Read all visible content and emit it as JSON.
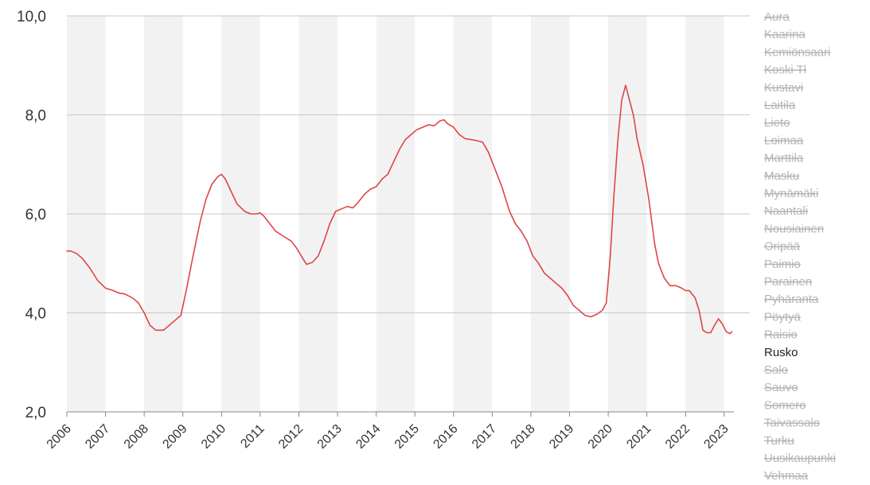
{
  "chart_data": {
    "type": "line",
    "title": "",
    "xlabel": "",
    "ylabel": "",
    "ylim": [
      2.0,
      10.0
    ],
    "xlim": [
      2006.0,
      2023.25
    ],
    "yticks": [
      "2,0",
      "4,0",
      "6,0",
      "8,0",
      "10,0"
    ],
    "ytick_values": [
      2,
      4,
      6,
      8,
      10
    ],
    "xticks": [
      "2006",
      "2007",
      "2008",
      "2009",
      "2010",
      "2011",
      "2012",
      "2013",
      "2014",
      "2015",
      "2016",
      "2017",
      "2018",
      "2019",
      "2020",
      "2021",
      "2022",
      "2023"
    ],
    "grid": "horizontal",
    "alternating_year_bands": true,
    "colors": {
      "line": "#e04545",
      "band": "#f2f2f2",
      "grid": "#c8c8c8",
      "axis": "#888888",
      "legend_off": "#b5b5b5",
      "legend_on": "#222222"
    },
    "legend_position": "right",
    "series": [
      {
        "name": "Rusko",
        "x": [
          2006.0,
          2006.1,
          2006.25,
          2006.4,
          2006.6,
          2006.8,
          2007.0,
          2007.2,
          2007.35,
          2007.5,
          2007.7,
          2007.85,
          2008.0,
          2008.15,
          2008.3,
          2008.5,
          2008.65,
          2008.8,
          2008.95,
          2009.1,
          2009.25,
          2009.45,
          2009.6,
          2009.75,
          2009.9,
          2010.0,
          2010.1,
          2010.25,
          2010.4,
          2010.6,
          2010.75,
          2010.9,
          2011.0,
          2011.1,
          2011.25,
          2011.4,
          2011.6,
          2011.8,
          2011.95,
          2012.1,
          2012.2,
          2012.35,
          2012.5,
          2012.65,
          2012.8,
          2012.95,
          2013.1,
          2013.25,
          2013.4,
          2013.55,
          2013.7,
          2013.85,
          2014.0,
          2014.15,
          2014.3,
          2014.45,
          2014.6,
          2014.75,
          2014.9,
          2015.05,
          2015.2,
          2015.35,
          2015.5,
          2015.65,
          2015.75,
          2015.85,
          2016.0,
          2016.15,
          2016.3,
          2016.45,
          2016.6,
          2016.75,
          2016.9,
          2017.05,
          2017.25,
          2017.45,
          2017.6,
          2017.75,
          2017.9,
          2018.05,
          2018.2,
          2018.35,
          2018.5,
          2018.65,
          2018.8,
          2018.95,
          2019.1,
          2019.25,
          2019.4,
          2019.55,
          2019.7,
          2019.85,
          2019.95,
          2020.05,
          2020.15,
          2020.25,
          2020.35,
          2020.45,
          2020.55,
          2020.65,
          2020.75,
          2020.9,
          2021.05,
          2021.2,
          2021.3,
          2021.45,
          2021.6,
          2021.75,
          2021.9,
          2022.0,
          2022.1,
          2022.25,
          2022.35,
          2022.45,
          2022.55,
          2022.65,
          2022.75,
          2022.85,
          2022.95,
          2023.05,
          2023.15,
          2023.2
        ],
        "y": [
          5.25,
          5.25,
          5.2,
          5.1,
          4.9,
          4.65,
          4.5,
          4.45,
          4.4,
          4.38,
          4.3,
          4.2,
          4.0,
          3.75,
          3.65,
          3.65,
          3.75,
          3.85,
          3.95,
          4.5,
          5.1,
          5.85,
          6.3,
          6.6,
          6.75,
          6.8,
          6.7,
          6.45,
          6.2,
          6.05,
          6.0,
          6.0,
          6.02,
          5.95,
          5.8,
          5.65,
          5.55,
          5.45,
          5.3,
          5.1,
          4.98,
          5.02,
          5.15,
          5.45,
          5.8,
          6.05,
          6.1,
          6.15,
          6.12,
          6.25,
          6.4,
          6.5,
          6.55,
          6.7,
          6.8,
          7.05,
          7.3,
          7.5,
          7.6,
          7.7,
          7.75,
          7.8,
          7.78,
          7.88,
          7.9,
          7.82,
          7.75,
          7.6,
          7.52,
          7.5,
          7.48,
          7.45,
          7.25,
          6.95,
          6.55,
          6.05,
          5.8,
          5.65,
          5.45,
          5.15,
          5.0,
          4.8,
          4.7,
          4.6,
          4.5,
          4.35,
          4.15,
          4.05,
          3.95,
          3.92,
          3.97,
          4.05,
          4.2,
          5.1,
          6.4,
          7.5,
          8.3,
          8.6,
          8.3,
          8.0,
          7.5,
          7.0,
          6.3,
          5.4,
          5.0,
          4.7,
          4.55,
          4.55,
          4.5,
          4.45,
          4.45,
          4.3,
          4.05,
          3.65,
          3.6,
          3.6,
          3.75,
          3.88,
          3.78,
          3.62,
          3.58,
          3.62
        ]
      }
    ],
    "legend": [
      {
        "label": "Aura",
        "active": false
      },
      {
        "label": "Kaarina",
        "active": false
      },
      {
        "label": "Kemiönsaari",
        "active": false
      },
      {
        "label": "Koski Tl",
        "active": false
      },
      {
        "label": "Kustavi",
        "active": false
      },
      {
        "label": "Laitila",
        "active": false
      },
      {
        "label": "Lieto",
        "active": false
      },
      {
        "label": "Loimaa",
        "active": false
      },
      {
        "label": "Marttila",
        "active": false
      },
      {
        "label": "Masku",
        "active": false
      },
      {
        "label": "Mynämäki",
        "active": false
      },
      {
        "label": "Naantali",
        "active": false
      },
      {
        "label": "Nousiainen",
        "active": false
      },
      {
        "label": "Oripää",
        "active": false
      },
      {
        "label": "Paimio",
        "active": false
      },
      {
        "label": "Parainen",
        "active": false
      },
      {
        "label": "Pyhäranta",
        "active": false
      },
      {
        "label": "Pöytyä",
        "active": false
      },
      {
        "label": "Raisio",
        "active": false
      },
      {
        "label": "Rusko",
        "active": true
      },
      {
        "label": "Salo",
        "active": false
      },
      {
        "label": "Sauvo",
        "active": false
      },
      {
        "label": "Somero",
        "active": false
      },
      {
        "label": "Taivassalo",
        "active": false
      },
      {
        "label": "Turku",
        "active": false
      },
      {
        "label": "Uusikaupunki",
        "active": false
      },
      {
        "label": "Vehmaa",
        "active": false
      }
    ]
  }
}
